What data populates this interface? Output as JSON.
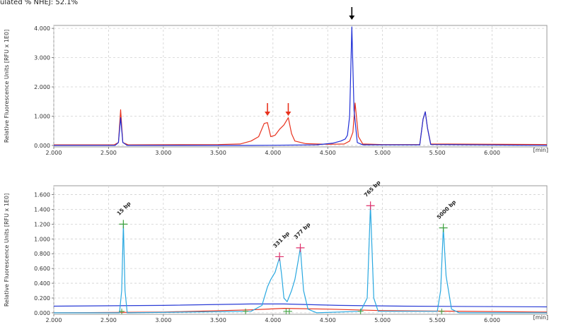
{
  "caption": "ulated % NHEJ: 52.1%",
  "colors": {
    "red": "#e8321e",
    "blue": "#1f2fd6",
    "cyan": "#29a8e0",
    "lightblue": "#2a3cd6",
    "grid": "#d0d0d0",
    "marker_green": "#3ca03c",
    "marker_pink": "#e0306a",
    "arrow_black": "#000000",
    "arrow_red": "#e8321e"
  },
  "chart_data": [
    {
      "type": "line",
      "ylabel": "Relative Fluorescence Units [RFU x 1E0]",
      "x_unit": "[min]",
      "xlim": [
        2.0,
        6.5
      ],
      "ylim": [
        -0.05,
        4.1
      ],
      "grid": true,
      "xticks": [
        "2.000",
        "2.500",
        "3.000",
        "3.500",
        "4.000",
        "4.500",
        "5.000",
        "5.500",
        "6.000"
      ],
      "xtick_values": [
        2.0,
        2.5,
        3.0,
        3.5,
        4.0,
        4.5,
        5.0,
        5.5,
        6.0
      ],
      "yticks": [
        "0.000",
        "1.000",
        "2.000",
        "3.000",
        "4.000"
      ],
      "ytick_values": [
        0,
        1,
        2,
        3,
        4
      ],
      "series": [
        {
          "color": "red",
          "points": [
            [
              2.0,
              0.02
            ],
            [
              2.55,
              0.02
            ],
            [
              2.59,
              0.1
            ],
            [
              2.61,
              1.22
            ],
            [
              2.63,
              0.1
            ],
            [
              2.68,
              0.02
            ],
            [
              3.5,
              0.03
            ],
            [
              3.7,
              0.05
            ],
            [
              3.8,
              0.15
            ],
            [
              3.87,
              0.3
            ],
            [
              3.92,
              0.75
            ],
            [
              3.95,
              0.78
            ],
            [
              3.98,
              0.3
            ],
            [
              4.02,
              0.35
            ],
            [
              4.06,
              0.55
            ],
            [
              4.1,
              0.7
            ],
            [
              4.14,
              0.95
            ],
            [
              4.17,
              0.4
            ],
            [
              4.2,
              0.15
            ],
            [
              4.3,
              0.06
            ],
            [
              4.5,
              0.04
            ],
            [
              4.65,
              0.05
            ],
            [
              4.7,
              0.15
            ],
            [
              4.73,
              0.45
            ],
            [
              4.75,
              1.45
            ],
            [
              4.78,
              0.3
            ],
            [
              4.82,
              0.05
            ],
            [
              5.0,
              0.03
            ],
            [
              5.34,
              0.03
            ],
            [
              5.37,
              0.9
            ],
            [
              5.39,
              1.15
            ],
            [
              5.41,
              0.6
            ],
            [
              5.44,
              0.05
            ],
            [
              6.5,
              0.03
            ]
          ]
        },
        {
          "color": "blue",
          "points": [
            [
              2.0,
              0.0
            ],
            [
              2.56,
              0.0
            ],
            [
              2.59,
              0.1
            ],
            [
              2.61,
              0.95
            ],
            [
              2.63,
              0.1
            ],
            [
              2.67,
              0.0
            ],
            [
              3.8,
              0.0
            ],
            [
              4.4,
              0.02
            ],
            [
              4.55,
              0.08
            ],
            [
              4.62,
              0.15
            ],
            [
              4.66,
              0.22
            ],
            [
              4.68,
              0.35
            ],
            [
              4.7,
              1.0
            ],
            [
              4.72,
              4.05
            ],
            [
              4.74,
              1.2
            ],
            [
              4.77,
              0.1
            ],
            [
              4.82,
              0.02
            ],
            [
              5.34,
              0.02
            ],
            [
              5.37,
              0.9
            ],
            [
              5.39,
              1.15
            ],
            [
              5.41,
              0.6
            ],
            [
              5.44,
              0.03
            ],
            [
              6.5,
              0.0
            ]
          ]
        }
      ],
      "annotations": [
        {
          "type": "arrow",
          "color": "red",
          "x": 3.95
        },
        {
          "type": "arrow",
          "color": "red",
          "x": 4.14
        },
        {
          "type": "arrow",
          "color": "black",
          "x": 4.72
        }
      ]
    },
    {
      "type": "line",
      "ylabel": "Relative Fluorescence Units [RFU x 1E0]",
      "x_unit": "[min]",
      "xlim": [
        2.0,
        6.5
      ],
      "ylim": [
        -0.02,
        1.72
      ],
      "grid": true,
      "xticks": [
        "2.000",
        "2.500",
        "3.000",
        "3.500",
        "4.000",
        "4.500",
        "5.000",
        "5.500",
        "6.000"
      ],
      "xtick_values": [
        2.0,
        2.5,
        3.0,
        3.5,
        4.0,
        4.5,
        5.0,
        5.5,
        6.0
      ],
      "yticks": [
        "0.000",
        "0.200",
        "0.400",
        "0.600",
        "0.800",
        "1.000",
        "1.200",
        "1.400",
        "1.600"
      ],
      "ytick_values": [
        0,
        0.2,
        0.4,
        0.6,
        0.8,
        1.0,
        1.2,
        1.4,
        1.6
      ],
      "series": [
        {
          "color": "lightblue",
          "points": [
            [
              2.0,
              0.09
            ],
            [
              3.0,
              0.1
            ],
            [
              3.8,
              0.12
            ],
            [
              4.1,
              0.12
            ],
            [
              4.6,
              0.1
            ],
            [
              5.2,
              0.09
            ],
            [
              6.5,
              0.08
            ]
          ]
        },
        {
          "color": "red",
          "points": [
            [
              2.0,
              0.0
            ],
            [
              3.0,
              0.01
            ],
            [
              3.8,
              0.04
            ],
            [
              4.1,
              0.06
            ],
            [
              4.5,
              0.05
            ],
            [
              5.0,
              0.03
            ],
            [
              6.5,
              0.01
            ]
          ]
        },
        {
          "color": "cyan",
          "points": [
            [
              2.0,
              0.0
            ],
            [
              2.6,
              0.0
            ],
            [
              2.62,
              0.3
            ],
            [
              2.635,
              1.2
            ],
            [
              2.65,
              0.3
            ],
            [
              2.67,
              0.0
            ],
            [
              3.8,
              0.02
            ],
            [
              3.9,
              0.1
            ],
            [
              3.95,
              0.35
            ],
            [
              3.98,
              0.45
            ],
            [
              4.02,
              0.55
            ],
            [
              4.06,
              0.75
            ],
            [
              4.08,
              0.5
            ],
            [
              4.1,
              0.2
            ],
            [
              4.13,
              0.15
            ],
            [
              4.17,
              0.3
            ],
            [
              4.2,
              0.45
            ],
            [
              4.23,
              0.7
            ],
            [
              4.25,
              0.88
            ],
            [
              4.28,
              0.3
            ],
            [
              4.32,
              0.05
            ],
            [
              4.4,
              0.0
            ],
            [
              4.8,
              0.02
            ],
            [
              4.86,
              0.2
            ],
            [
              4.89,
              1.45
            ],
            [
              4.92,
              0.2
            ],
            [
              4.96,
              0.02
            ],
            [
              5.5,
              0.02
            ],
            [
              5.53,
              0.3
            ],
            [
              5.555,
              1.15
            ],
            [
              5.58,
              0.5
            ],
            [
              5.63,
              0.05
            ],
            [
              5.7,
              0.0
            ],
            [
              6.5,
              0.0
            ]
          ]
        }
      ],
      "peaks": [
        {
          "label": "15 bp",
          "x": 2.635,
          "y": 1.2,
          "marker": "green"
        },
        {
          "label": "331 bp",
          "x": 4.06,
          "y": 0.76,
          "marker": "pink"
        },
        {
          "label": "377 bp",
          "x": 4.25,
          "y": 0.88,
          "marker": "pink"
        },
        {
          "label": "765 bp",
          "x": 4.89,
          "y": 1.45,
          "marker": "pink"
        },
        {
          "label": "5000 bp",
          "x": 5.555,
          "y": 1.15,
          "marker": "green"
        }
      ],
      "base_markers": [
        2.62,
        3.75,
        4.12,
        4.15,
        4.8,
        5.54
      ]
    }
  ]
}
